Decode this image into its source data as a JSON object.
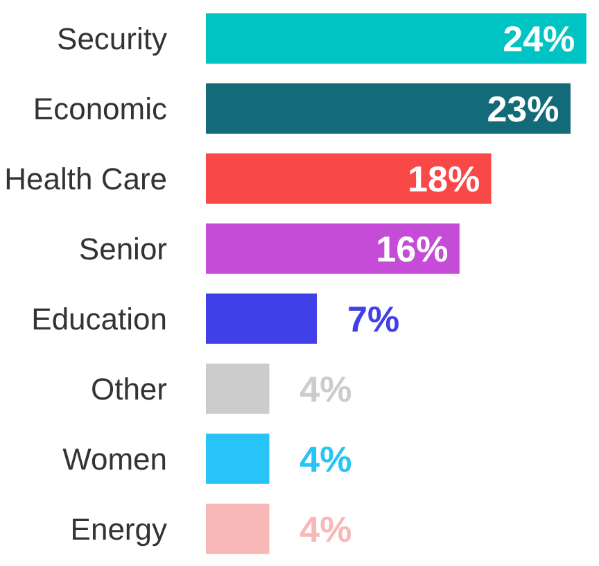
{
  "chart_data": {
    "type": "bar",
    "orientation": "horizontal",
    "data_labels": true,
    "grid": false,
    "categories": [
      "Security",
      "Economic",
      "Health Care",
      "Senior",
      "Education",
      "Other",
      "Women",
      "Energy"
    ],
    "values": [
      24,
      23,
      18,
      16,
      7,
      4,
      4,
      4
    ],
    "value_labels": [
      "24%",
      "23%",
      "18%",
      "16%",
      "7%",
      "4%",
      "4%",
      "4%"
    ],
    "colors": [
      "#00c4c4",
      "#136a78",
      "#f84848",
      "#c44cd6",
      "#4040e8",
      "#cccccc",
      "#28c4f8",
      "#f8b8b8"
    ]
  }
}
